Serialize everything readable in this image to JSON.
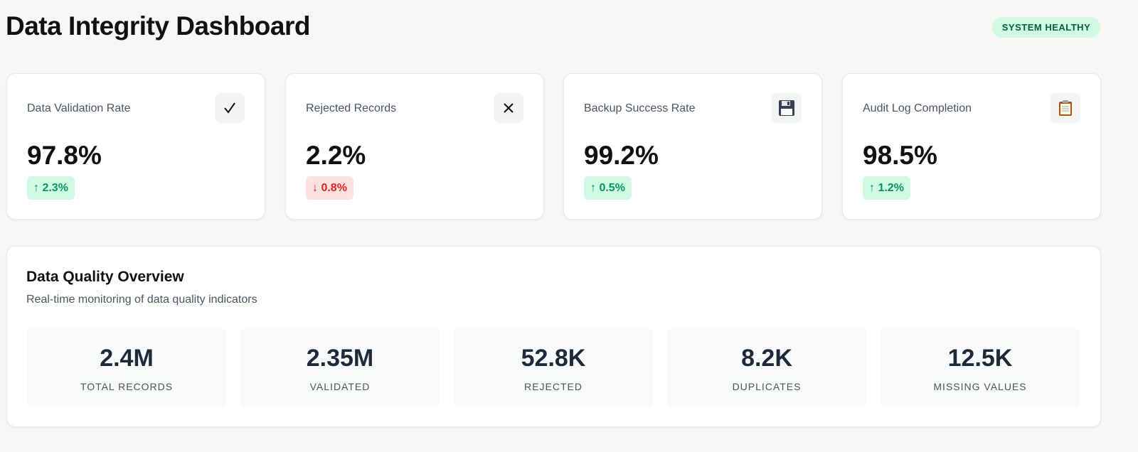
{
  "header": {
    "title": "Data Integrity Dashboard",
    "badge": "SYSTEM HEALTHY"
  },
  "cards": [
    {
      "label": "Data Validation Rate",
      "value": "97.8%",
      "change": "↑ 2.3%",
      "trend": "up"
    },
    {
      "label": "Rejected Records",
      "value": "2.2%",
      "change": "↓ 0.8%",
      "trend": "down"
    },
    {
      "label": "Backup Success Rate",
      "value": "99.2%",
      "change": "↑ 0.5%",
      "trend": "up"
    },
    {
      "label": "Audit Log Completion",
      "value": "98.5%",
      "change": "↑ 1.2%",
      "trend": "up"
    }
  ],
  "overview": {
    "title": "Data Quality Overview",
    "subtitle": "Real-time monitoring of data quality indicators",
    "stats": [
      {
        "value": "2.4M",
        "label": "TOTAL RECORDS"
      },
      {
        "value": "2.35M",
        "label": "VALIDATED"
      },
      {
        "value": "52.8K",
        "label": "REJECTED"
      },
      {
        "value": "8.2K",
        "label": "DUPLICATES"
      },
      {
        "value": "12.5K",
        "label": "MISSING VALUES"
      }
    ]
  }
}
